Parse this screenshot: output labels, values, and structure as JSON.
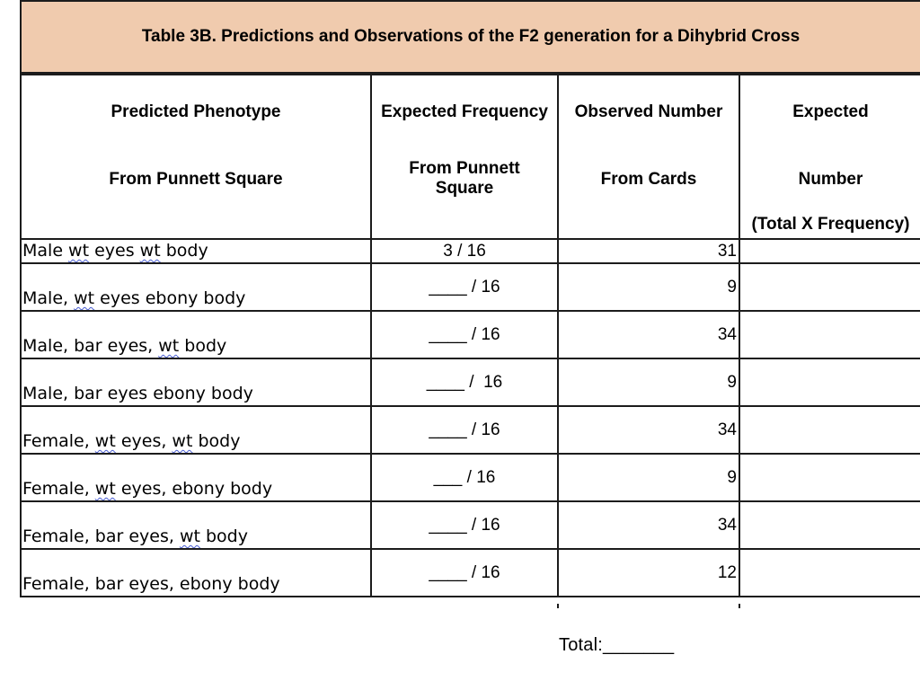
{
  "title": "Table 3B. Predictions and Observations of the F2 generation for a Dihybrid Cross",
  "colors": {
    "title_band_background": "#f0cbae",
    "table_border": "#1c1c1c",
    "spellcheck_squiggle": "#4a5ed2"
  },
  "header": {
    "predicted": {
      "line1": "Predicted Phenotype",
      "line2": "From Punnett Square"
    },
    "frequency": {
      "line1": "Expected Frequency",
      "line2": "From Punnett",
      "line3": "Square"
    },
    "observed": {
      "line1": "Observed Number",
      "line2": "From Cards"
    },
    "expected": {
      "line1": "Expected",
      "line2": "Number",
      "line3": "(Total X Frequency)"
    }
  },
  "rows": [
    {
      "phenotype": [
        {
          "t": "Male "
        },
        {
          "t": "wt",
          "u": true
        },
        {
          "t": " eyes "
        },
        {
          "t": "wt",
          "u": true
        },
        {
          "t": " body"
        }
      ],
      "frequency": "3 / 16",
      "observed": "31",
      "expected": ""
    },
    {
      "phenotype": [
        {
          "t": "Male, "
        },
        {
          "t": "wt",
          "u": true
        },
        {
          "t": " eyes ebony body"
        }
      ],
      "frequency": "____ / 16",
      "observed": "9",
      "expected": ""
    },
    {
      "phenotype": [
        {
          "t": "Male, bar eyes, "
        },
        {
          "t": "wt",
          "u": true
        },
        {
          "t": " body"
        }
      ],
      "frequency": "____ / 16",
      "observed": "34",
      "expected": ""
    },
    {
      "phenotype": [
        {
          "t": "Male, bar eyes ebony body"
        }
      ],
      "frequency": "____ /  16",
      "observed": "9",
      "expected": ""
    },
    {
      "phenotype": [
        {
          "t": "Female, "
        },
        {
          "t": "wt",
          "u": true
        },
        {
          "t": " eyes, "
        },
        {
          "t": "wt",
          "u": true
        },
        {
          "t": " body"
        }
      ],
      "frequency": "____ / 16",
      "observed": "34",
      "expected": ""
    },
    {
      "phenotype": [
        {
          "t": "Female, "
        },
        {
          "t": "wt",
          "u": true
        },
        {
          "t": " eyes, ebony body"
        }
      ],
      "frequency": "___ / 16",
      "observed": "9",
      "expected": ""
    },
    {
      "phenotype": [
        {
          "t": "Female, bar eyes, "
        },
        {
          "t": "wt",
          "u": true
        },
        {
          "t": " body"
        }
      ],
      "frequency": "____ / 16",
      "observed": "34",
      "expected": ""
    },
    {
      "phenotype": [
        {
          "t": "Female, bar eyes, ebony body"
        }
      ],
      "frequency": "____ / 16",
      "observed": "12",
      "expected": ""
    }
  ],
  "footer": {
    "total_label": "Total:_______"
  }
}
